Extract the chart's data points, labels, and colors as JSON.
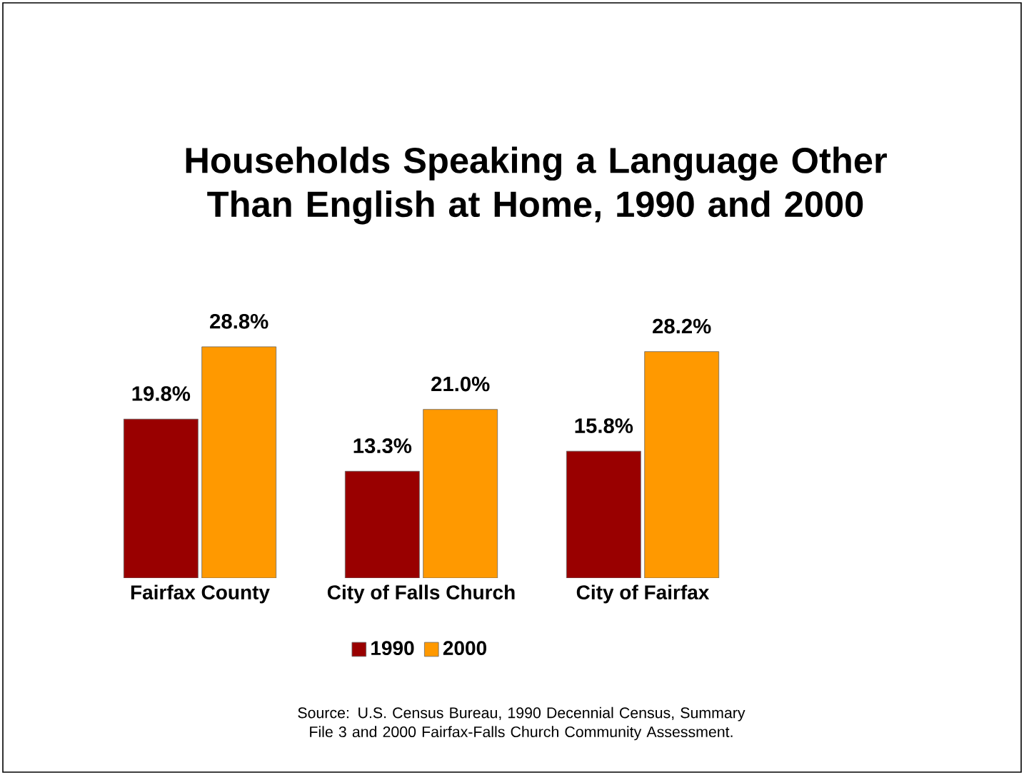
{
  "chart_data": {
    "type": "bar",
    "title": "Households Speaking a Language Other Than English at Home, 1990 and 2000",
    "categories": [
      "Fairfax County",
      "City of Falls Church",
      "City of Fairfax"
    ],
    "series": [
      {
        "name": "1990",
        "color": "#990000",
        "values": [
          19.8,
          13.3,
          15.8
        ],
        "value_labels": [
          "19.8%",
          "13.3%",
          "15.8%"
        ]
      },
      {
        "name": "2000",
        "color": "#ff9900",
        "values": [
          28.8,
          21.0,
          28.2
        ],
        "value_labels": [
          "28.8%",
          "21.0%",
          "28.2%"
        ]
      }
    ],
    "legend": "bottom",
    "annotations": [
      "Source:  U.S. Census Bureau, 1990 Decennial Census, Summary File 3 and 2000 Fairfax-Falls Church Community Assessment."
    ]
  }
}
